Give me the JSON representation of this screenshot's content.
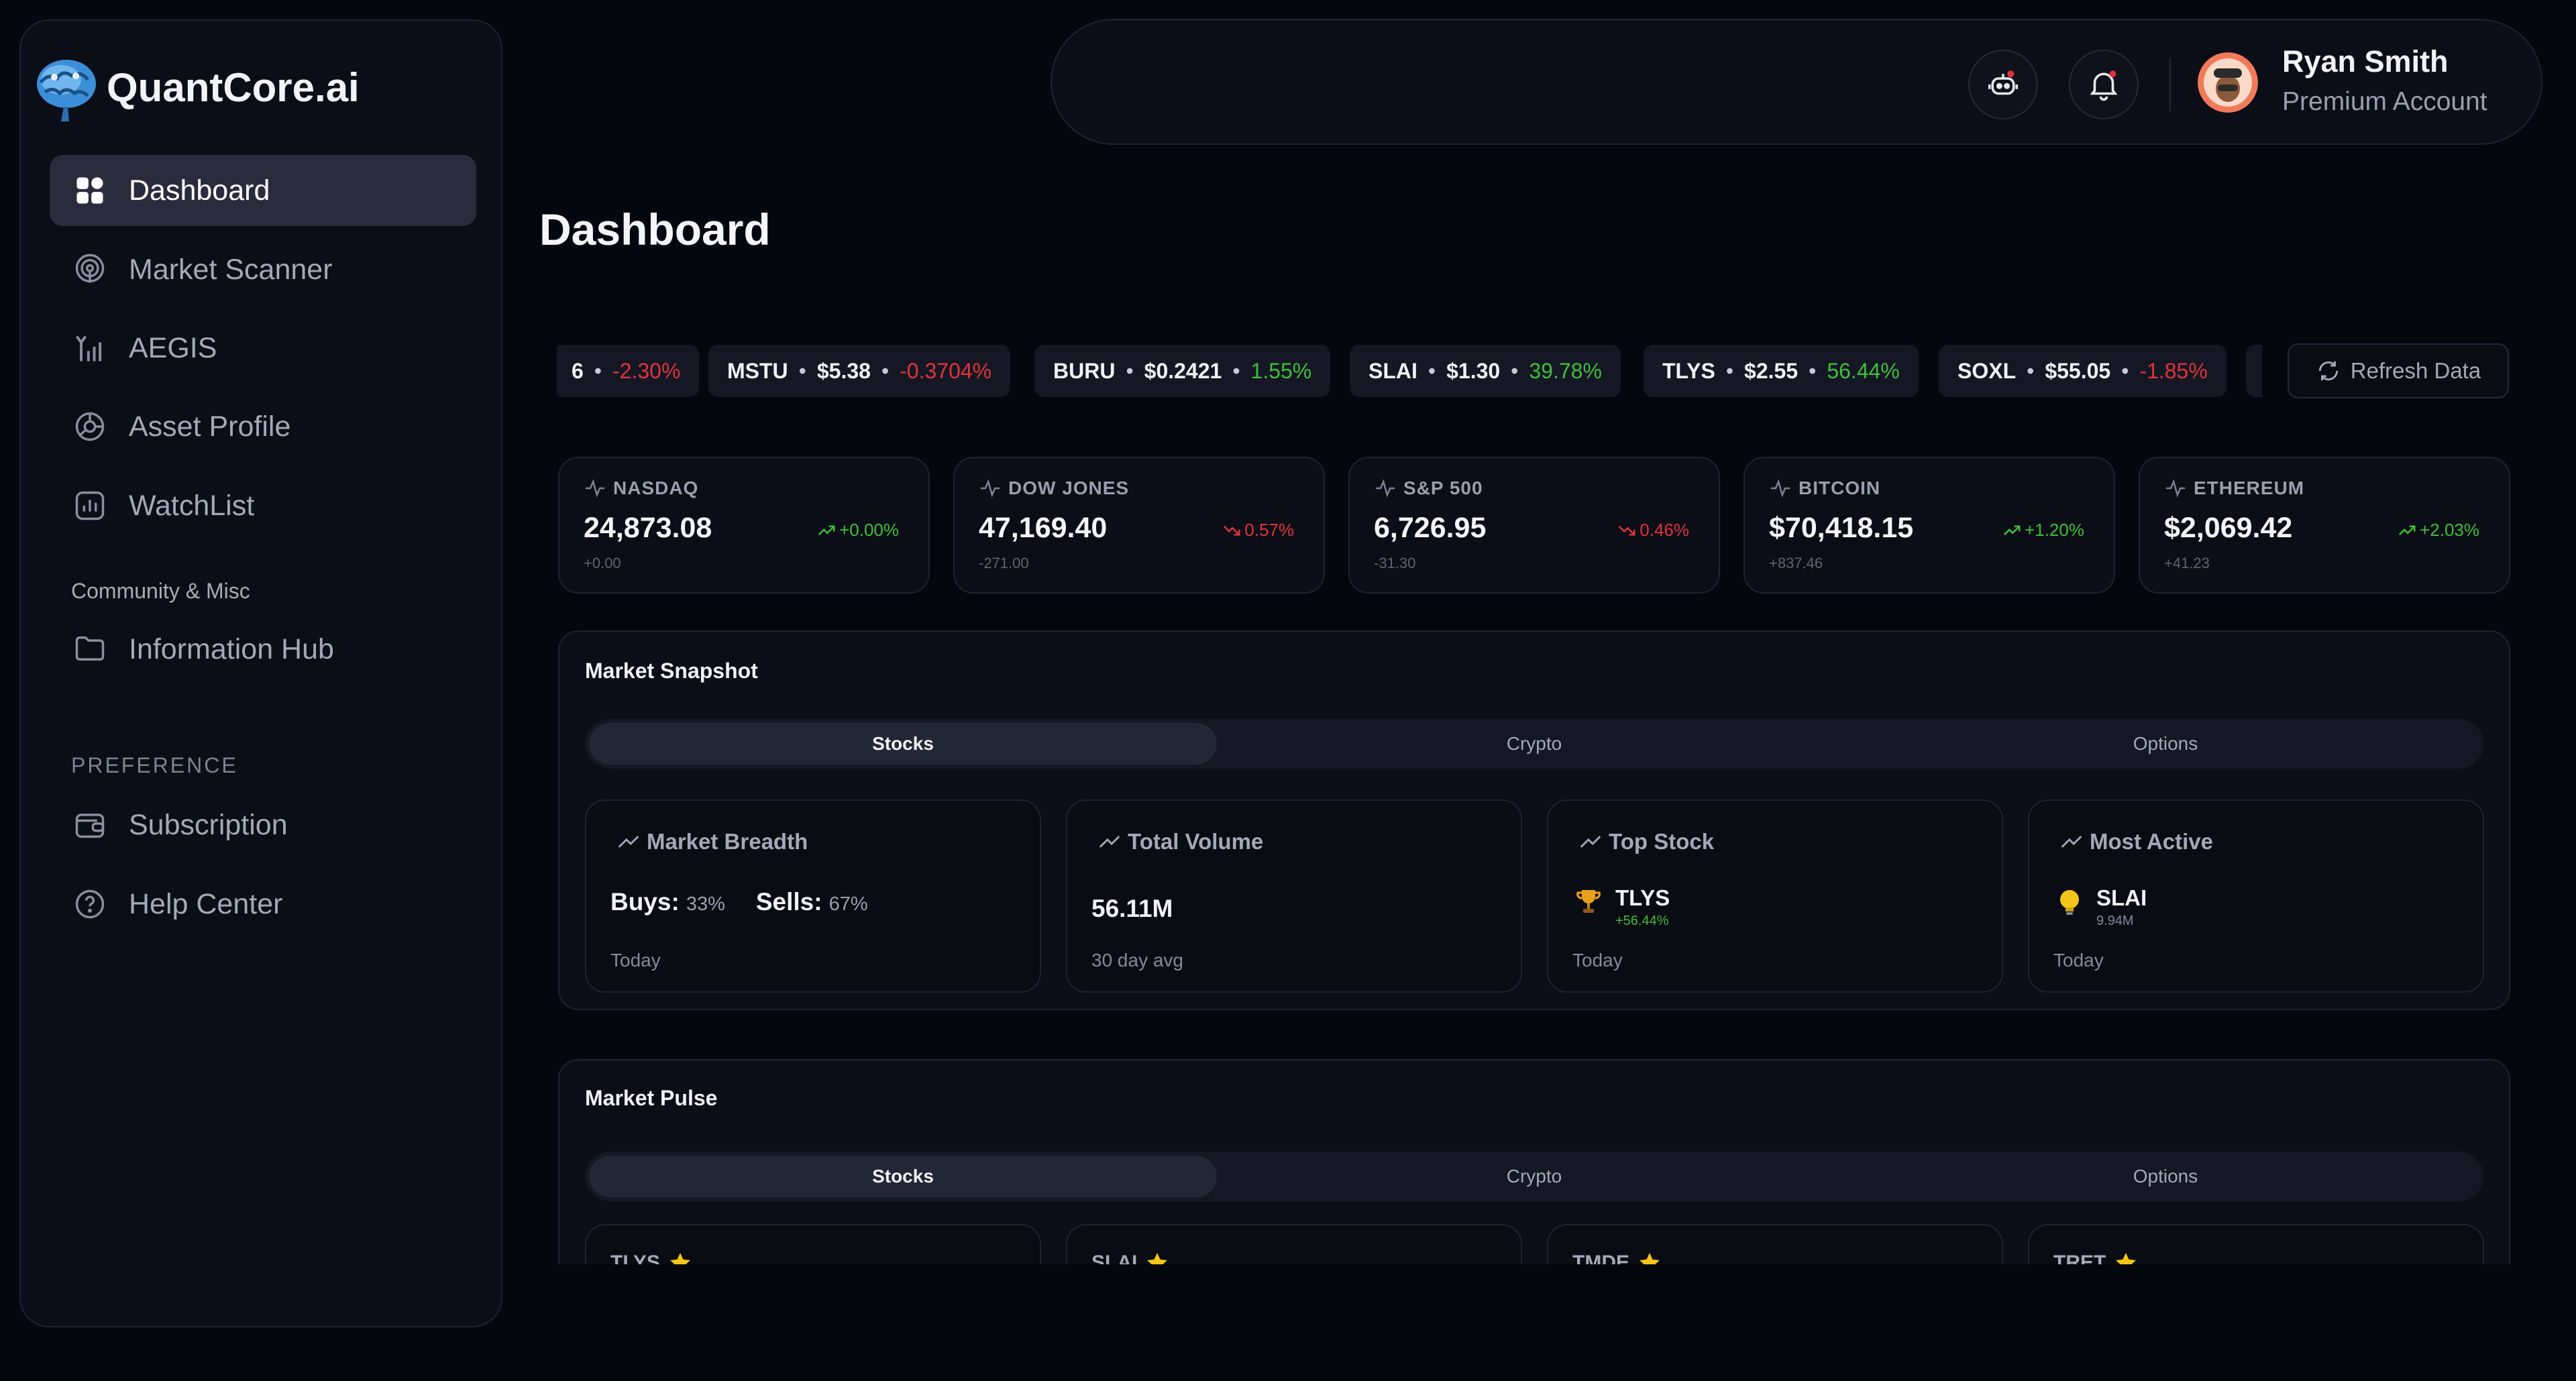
{
  "app": {
    "name": "QuantCore.ai"
  },
  "sidebar": {
    "items": [
      {
        "label": "Dashboard",
        "icon": "grid-icon",
        "active": true
      },
      {
        "label": "Market Scanner",
        "icon": "radar-icon"
      },
      {
        "label": "AEGIS",
        "icon": "signal-bars-icon"
      },
      {
        "label": "Asset Profile",
        "icon": "chart-pie-icon"
      },
      {
        "label": "WatchList",
        "icon": "bar-chart-icon"
      }
    ],
    "section_community": "Community & Misc",
    "community_items": [
      {
        "label": "Information Hub",
        "icon": "folder-icon"
      }
    ],
    "section_preference": "PREFERENCE",
    "preference_items": [
      {
        "label": "Subscription",
        "icon": "wallet-icon"
      },
      {
        "label": "Help Center",
        "icon": "help-circle-icon"
      }
    ]
  },
  "topbar": {
    "user_name": "Ryan Smith",
    "user_plan": "Premium Account"
  },
  "page": {
    "title": "Dashboard"
  },
  "ticker": [
    {
      "symbol": "6",
      "price": "",
      "change": "-2.30%",
      "dir": "neg"
    },
    {
      "symbol": "MSTU",
      "price": "$5.38",
      "change": "-0.3704%",
      "dir": "neg"
    },
    {
      "symbol": "BURU",
      "price": "$0.2421",
      "change": "1.55%",
      "dir": "pos"
    },
    {
      "symbol": "SLAI",
      "price": "$1.30",
      "change": "39.78%",
      "dir": "pos"
    },
    {
      "symbol": "TLYS",
      "price": "$2.55",
      "change": "56.44%",
      "dir": "pos"
    },
    {
      "symbol": "SOXL",
      "price": "$55.05",
      "change": "-1.85%",
      "dir": "neg"
    }
  ],
  "refresh_label": "Refresh Data",
  "indices": [
    {
      "name": "NASDAQ",
      "value": "24,873.08",
      "delta": "+0.00",
      "change": "+0.00%",
      "dir": "pos"
    },
    {
      "name": "DOW JONES",
      "value": "47,169.40",
      "delta": "-271.00",
      "change": "0.57%",
      "dir": "neg"
    },
    {
      "name": "S&P 500",
      "value": "6,726.95",
      "delta": "-31.30",
      "change": "0.46%",
      "dir": "neg"
    },
    {
      "name": "BITCOIN",
      "value": "$70,418.15",
      "delta": "+837.46",
      "change": "+1.20%",
      "dir": "pos"
    },
    {
      "name": "ETHEREUM",
      "value": "$2,069.42",
      "delta": "+41.23",
      "change": "+2.03%",
      "dir": "pos"
    }
  ],
  "snapshot": {
    "title": "Market Snapshot",
    "tabs": [
      "Stocks",
      "Crypto",
      "Options"
    ],
    "breadth": {
      "title": "Market Breadth",
      "buys_label": "Buys:",
      "buys_pct": "33%",
      "sells_label": "Sells:",
      "sells_pct": "67%",
      "footer": "Today"
    },
    "volume": {
      "title": "Total Volume",
      "value": "56.11M",
      "footer": "30 day avg"
    },
    "top_stock": {
      "title": "Top Stock",
      "symbol": "TLYS",
      "sub": "+56.44%",
      "footer": "Today"
    },
    "most_active": {
      "title": "Most Active",
      "symbol": "SLAI",
      "sub": "9.94M",
      "footer": "Today"
    }
  },
  "pulse": {
    "title": "Market Pulse",
    "tabs": [
      "Stocks",
      "Crypto",
      "Options"
    ],
    "cards": [
      "TLYS",
      "SLAI",
      "TMDE",
      "TRET"
    ]
  },
  "colors": {
    "bg": "#05070f",
    "panel": "#0c0e17",
    "positive": "#3fbf3a",
    "negative": "#e0343a",
    "active_nav": "#2a2c3d"
  }
}
